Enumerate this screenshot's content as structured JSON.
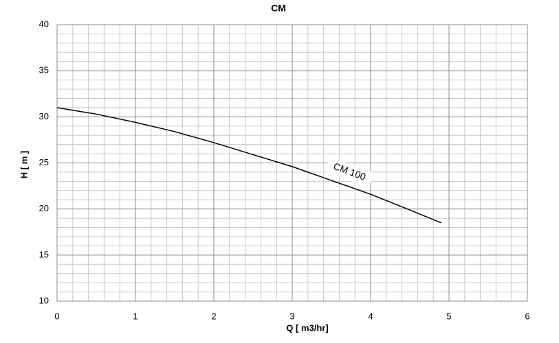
{
  "chart_data": {
    "type": "line",
    "title": "CM",
    "x_label": "Q [ m3/hr]",
    "y_label": "H [ m ]",
    "x": [
      0,
      0.5,
      1,
      1.5,
      2,
      2.5,
      3,
      3.5,
      4,
      4.5,
      4.9
    ],
    "series": [
      {
        "name": "CM 100",
        "color": "#000000",
        "values": [
          31.0,
          30.3,
          29.4,
          28.4,
          27.2,
          25.9,
          24.6,
          23.1,
          21.6,
          19.9,
          18.5
        ]
      }
    ],
    "xlim": [
      0,
      6
    ],
    "xticks": [
      0,
      1,
      2,
      3,
      4,
      5,
      6
    ],
    "ylim": [
      10,
      40
    ],
    "yticks": [
      10,
      15,
      20,
      25,
      30,
      35,
      40
    ],
    "x_minor_step": 0.2,
    "y_minor_step": 1,
    "grid": true
  }
}
